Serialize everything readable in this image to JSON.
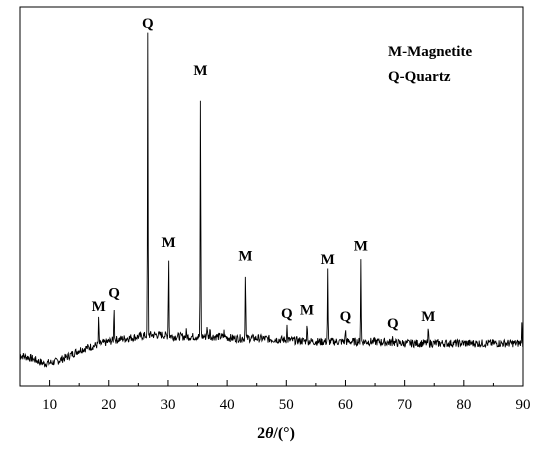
{
  "chart_data": {
    "type": "line",
    "xlabel": "2θ/(°)",
    "xlabel_parts": [
      "2",
      "θ",
      "/(°)"
    ],
    "xlim": [
      5,
      90
    ],
    "ylim": [
      0,
      100
    ],
    "xticks": [
      10,
      20,
      30,
      40,
      50,
      60,
      70,
      80,
      90
    ],
    "y_ticks_labeled": false,
    "grid": false,
    "legend_position": "top-right",
    "legend": [
      {
        "code": "M",
        "text": "M-Magnetite"
      },
      {
        "code": "Q",
        "text": "Q-Quartz"
      }
    ],
    "series": [
      {
        "values_note": "relative intensity",
        "background": [
          [
            5,
            5
          ],
          [
            7,
            4
          ],
          [
            9,
            2.5
          ],
          [
            11,
            3
          ],
          [
            13,
            4.5
          ],
          [
            15,
            6.5
          ],
          [
            17,
            7.5
          ],
          [
            19,
            8.5
          ],
          [
            21,
            9.5
          ],
          [
            23,
            10
          ],
          [
            25,
            10.5
          ],
          [
            27,
            11
          ],
          [
            29,
            11
          ],
          [
            31,
            10.5
          ],
          [
            33,
            10.5
          ],
          [
            35,
            10.5
          ],
          [
            37,
            10.5
          ],
          [
            39,
            10.5
          ],
          [
            41,
            10
          ],
          [
            45,
            10
          ],
          [
            50,
            9.5
          ],
          [
            55,
            9
          ],
          [
            60,
            9
          ],
          [
            65,
            9
          ],
          [
            70,
            8.5
          ],
          [
            75,
            8.5
          ],
          [
            80,
            8.5
          ],
          [
            85,
            8.5
          ],
          [
            88,
            8.5
          ],
          [
            90,
            8.5
          ]
        ],
        "peaks": [
          {
            "x": 18.3,
            "y": 16
          },
          {
            "x": 20.9,
            "y": 20
          },
          {
            "x": 26.6,
            "y": 100
          },
          {
            "x": 30.1,
            "y": 35
          },
          {
            "x": 33.1,
            "y": 12
          },
          {
            "x": 35.5,
            "y": 86
          },
          {
            "x": 36.6,
            "y": 14
          },
          {
            "x": 37.1,
            "y": 13
          },
          {
            "x": 39.5,
            "y": 12
          },
          {
            "x": 43.1,
            "y": 31
          },
          {
            "x": 50.1,
            "y": 14
          },
          {
            "x": 53.5,
            "y": 15
          },
          {
            "x": 57.0,
            "y": 30
          },
          {
            "x": 60.0,
            "y": 13
          },
          {
            "x": 62.6,
            "y": 34
          },
          {
            "x": 68.0,
            "y": 11
          },
          {
            "x": 74.0,
            "y": 13
          },
          {
            "x": 89.8,
            "y": 14
          }
        ]
      }
    ],
    "annotations": [
      {
        "text": "Q",
        "x": 26.6,
        "y": 100
      },
      {
        "text": "M",
        "x": 35.5,
        "y": 86
      },
      {
        "text": "M",
        "x": 30.1,
        "y": 35
      },
      {
        "text": "M",
        "x": 43.1,
        "y": 31
      },
      {
        "text": "M",
        "x": 57.0,
        "y": 30
      },
      {
        "text": "M",
        "x": 62.6,
        "y": 34
      },
      {
        "text": "M",
        "x": 18.3,
        "y": 16
      },
      {
        "text": "Q",
        "x": 20.9,
        "y": 20
      },
      {
        "text": "Q",
        "x": 50.1,
        "y": 14
      },
      {
        "text": "M",
        "x": 53.5,
        "y": 15
      },
      {
        "text": "Q",
        "x": 60.0,
        "y": 13
      },
      {
        "text": "Q",
        "x": 68.0,
        "y": 11
      },
      {
        "text": "M",
        "x": 74.0,
        "y": 13
      }
    ]
  }
}
